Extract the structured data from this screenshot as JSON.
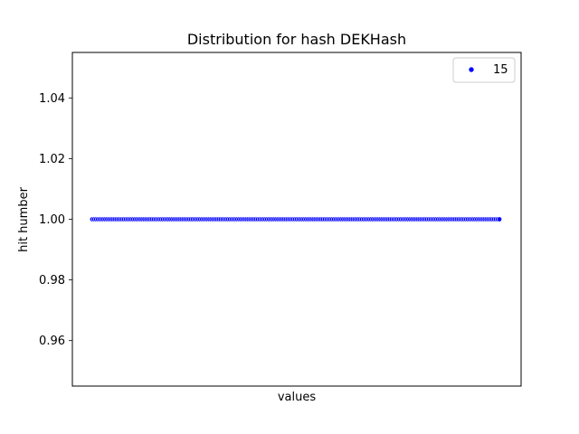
{
  "chart_data": {
    "type": "scatter",
    "title": "Distribution for hash DEKHash",
    "xlabel": "values",
    "ylabel": "hit humber",
    "ylim": [
      0.945,
      1.055
    ],
    "yticks": [
      "0.96",
      "0.98",
      "1.00",
      "1.02",
      "1.04"
    ],
    "xticks_visible": false,
    "grid": false,
    "legend": {
      "position": "top-right",
      "entries": [
        "15"
      ]
    },
    "series": [
      {
        "name": "15",
        "color": "#0000ff",
        "edge_color": "#ffffff",
        "y_value": 1.0,
        "point_count": 220
      }
    ]
  }
}
